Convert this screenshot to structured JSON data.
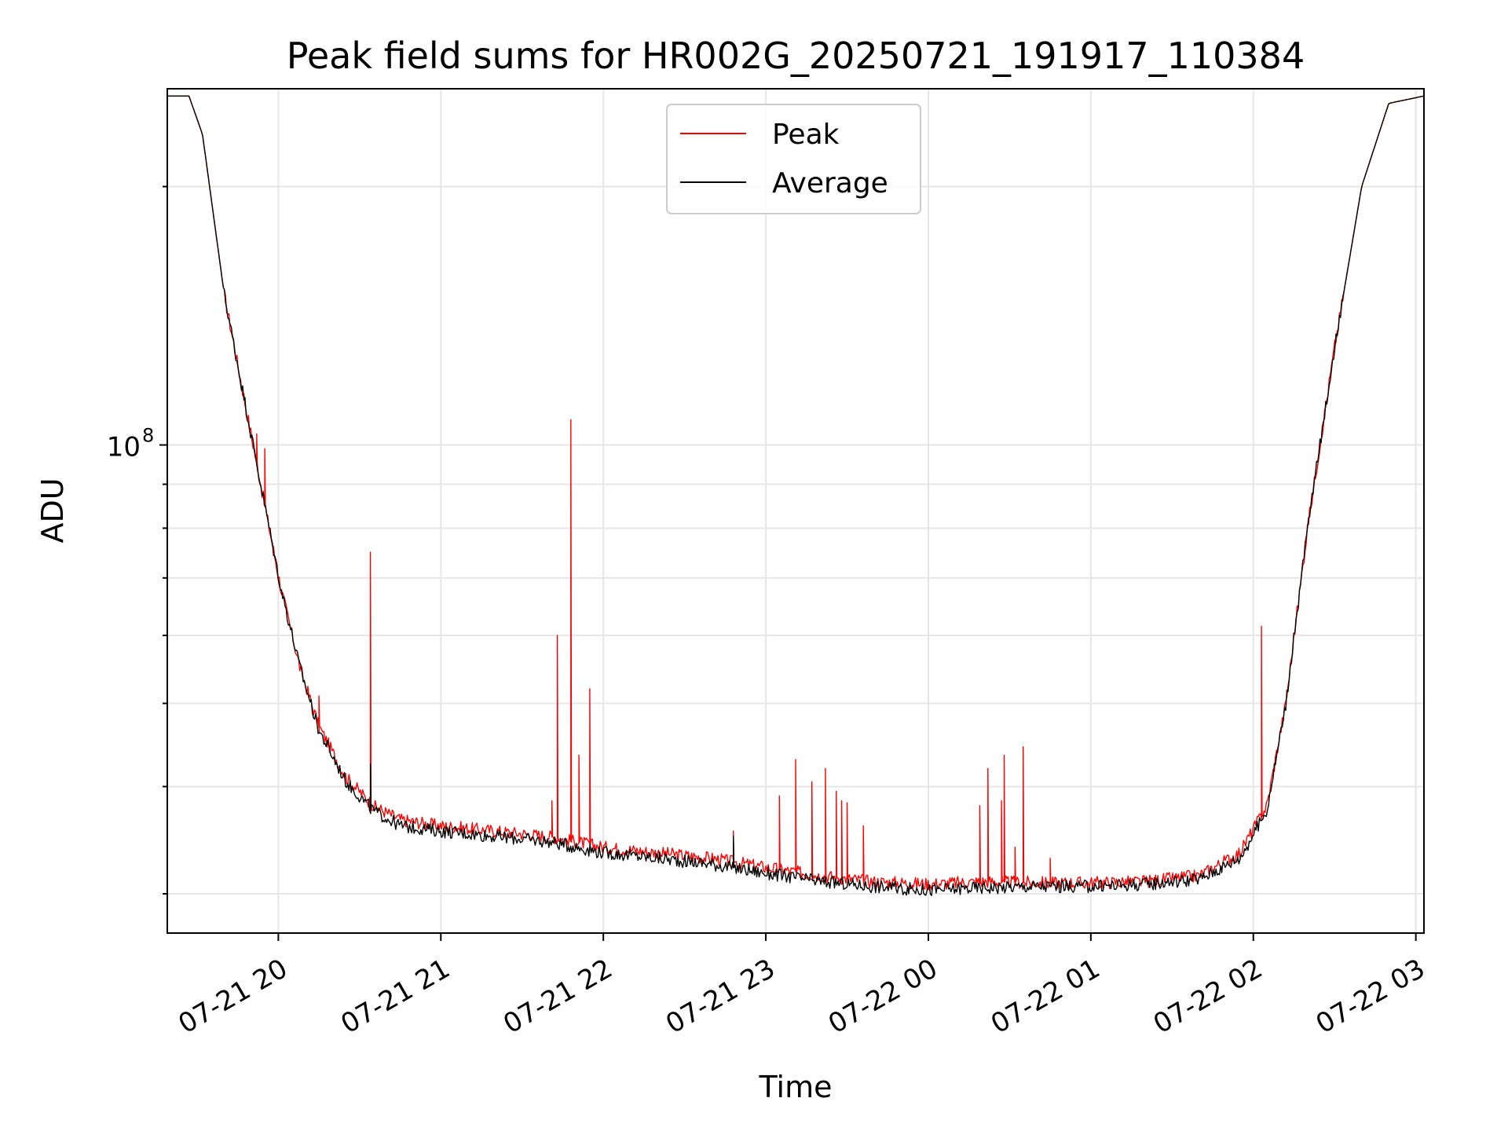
{
  "chart_data": {
    "type": "line",
    "title": "Peak field sums for HR002G_20250721_191917_110384",
    "xlabel": "Time",
    "ylabel": "ADU",
    "y_scale": "log",
    "y_tick_labels": [
      {
        "value": 100000000,
        "base": "10",
        "exp": "8"
      }
    ],
    "x_tick_labels": [
      "07-21 20",
      "07-21 21",
      "07-21 22",
      "07-21 23",
      "07-22 00",
      "07-22 01",
      "07-22 02",
      "07-22 03"
    ],
    "xlim": [
      "2025-07-21 19:19",
      "2025-07-22 03:03"
    ],
    "ylim": [
      27000000,
      260000000
    ],
    "grid": true,
    "legend": "upper-center",
    "series": [
      {
        "name": "Peak",
        "color": "#ff0000",
        "points": [
          [
            "2025-07-21 19:19",
            255000000
          ],
          [
            "2025-07-21 19:27",
            255000000
          ],
          [
            "2025-07-21 19:32",
            230000000
          ],
          [
            "2025-07-21 19:40",
            150000000
          ],
          [
            "2025-07-21 19:47",
            115000000
          ],
          [
            "2025-07-21 19:55",
            85000000
          ],
          [
            "2025-07-21 20:01",
            68000000
          ],
          [
            "2025-07-21 20:08",
            55000000
          ],
          [
            "2025-07-21 20:15",
            47000000
          ],
          [
            "2025-07-21 20:25",
            41000000
          ],
          [
            "2025-07-21 20:35",
            38000000
          ],
          [
            "2025-07-21 20:45",
            36600000
          ],
          [
            "2025-07-21 21:00",
            36000000
          ],
          [
            "2025-07-21 21:20",
            35500000
          ],
          [
            "2025-07-21 21:40",
            35000000
          ],
          [
            "2025-07-21 22:00",
            34000000
          ],
          [
            "2025-07-21 22:20",
            33500000
          ],
          [
            "2025-07-21 22:40",
            33000000
          ],
          [
            "2025-07-21 23:00",
            32200000
          ],
          [
            "2025-07-21 23:20",
            31500000
          ],
          [
            "2025-07-21 23:40",
            31000000
          ],
          [
            "2025-07-22 00:00",
            30800000
          ],
          [
            "2025-07-22 00:20",
            31000000
          ],
          [
            "2025-07-22 00:40",
            30900000
          ],
          [
            "2025-07-22 01:00",
            30900000
          ],
          [
            "2025-07-22 01:20",
            31000000
          ],
          [
            "2025-07-22 01:40",
            31500000
          ],
          [
            "2025-07-22 01:55",
            33500000
          ],
          [
            "2025-07-22 02:05",
            38000000
          ],
          [
            "2025-07-22 02:12",
            50000000
          ],
          [
            "2025-07-22 02:20",
            80000000
          ],
          [
            "2025-07-22 02:30",
            130000000
          ],
          [
            "2025-07-22 02:40",
            200000000
          ],
          [
            "2025-07-22 02:50",
            250000000
          ],
          [
            "2025-07-22 03:03",
            255000000
          ]
        ],
        "spikes": [
          [
            "2025-07-21 19:52",
            103000000
          ],
          [
            "2025-07-21 19:55",
            99000000
          ],
          [
            "2025-07-21 20:15",
            51000000
          ],
          [
            "2025-07-21 20:34",
            75000000
          ],
          [
            "2025-07-21 21:41",
            38500000
          ],
          [
            "2025-07-21 21:43",
            60000000
          ],
          [
            "2025-07-21 21:48",
            107000000
          ],
          [
            "2025-07-21 21:51",
            43500000
          ],
          [
            "2025-07-21 21:55",
            52000000
          ],
          [
            "2025-07-21 22:48",
            35500000
          ],
          [
            "2025-07-21 23:05",
            39000000
          ],
          [
            "2025-07-21 23:11",
            43000000
          ],
          [
            "2025-07-21 23:17",
            40500000
          ],
          [
            "2025-07-21 23:22",
            42000000
          ],
          [
            "2025-07-21 23:26",
            39500000
          ],
          [
            "2025-07-21 23:28",
            38500000
          ],
          [
            "2025-07-21 23:30",
            38300000
          ],
          [
            "2025-07-21 23:36",
            36000000
          ],
          [
            "2025-07-22 00:19",
            38000000
          ],
          [
            "2025-07-22 00:22",
            42000000
          ],
          [
            "2025-07-22 00:27",
            38500000
          ],
          [
            "2025-07-22 00:28",
            43500000
          ],
          [
            "2025-07-22 00:32",
            34000000
          ],
          [
            "2025-07-22 00:35",
            44500000
          ],
          [
            "2025-07-22 00:45",
            33000000
          ],
          [
            "2025-07-22 02:03",
            61500000
          ]
        ]
      },
      {
        "name": "Average",
        "color": "#000000",
        "points": [
          [
            "2025-07-21 19:19",
            255000000
          ],
          [
            "2025-07-21 19:27",
            255000000
          ],
          [
            "2025-07-21 19:32",
            230000000
          ],
          [
            "2025-07-21 19:40",
            150000000
          ],
          [
            "2025-07-21 19:47",
            115000000
          ],
          [
            "2025-07-21 19:55",
            85000000
          ],
          [
            "2025-07-21 20:01",
            68000000
          ],
          [
            "2025-07-21 20:08",
            55000000
          ],
          [
            "2025-07-21 20:15",
            46500000
          ],
          [
            "2025-07-21 20:25",
            40500000
          ],
          [
            "2025-07-21 20:35",
            37500000
          ],
          [
            "2025-07-21 20:45",
            36000000
          ],
          [
            "2025-07-21 21:00",
            35500000
          ],
          [
            "2025-07-21 21:20",
            35000000
          ],
          [
            "2025-07-21 21:40",
            34500000
          ],
          [
            "2025-07-21 22:00",
            33500000
          ],
          [
            "2025-07-21 22:20",
            33000000
          ],
          [
            "2025-07-21 22:40",
            32500000
          ],
          [
            "2025-07-21 23:00",
            31700000
          ],
          [
            "2025-07-21 23:20",
            31000000
          ],
          [
            "2025-07-21 23:40",
            30600000
          ],
          [
            "2025-07-22 00:00",
            30300000
          ],
          [
            "2025-07-22 00:20",
            30500000
          ],
          [
            "2025-07-22 00:40",
            30600000
          ],
          [
            "2025-07-22 01:00",
            30600000
          ],
          [
            "2025-07-22 01:20",
            30800000
          ],
          [
            "2025-07-22 01:40",
            31200000
          ],
          [
            "2025-07-22 01:55",
            33000000
          ],
          [
            "2025-07-22 02:05",
            37500000
          ],
          [
            "2025-07-22 02:12",
            50000000
          ],
          [
            "2025-07-22 02:20",
            80000000
          ],
          [
            "2025-07-22 02:30",
            130000000
          ],
          [
            "2025-07-22 02:40",
            200000000
          ],
          [
            "2025-07-22 02:50",
            250000000
          ],
          [
            "2025-07-22 03:03",
            255000000
          ]
        ],
        "spikes": [
          [
            "2025-07-21 20:34",
            42500000
          ],
          [
            "2025-07-21 22:48",
            35000000
          ]
        ]
      }
    ]
  }
}
